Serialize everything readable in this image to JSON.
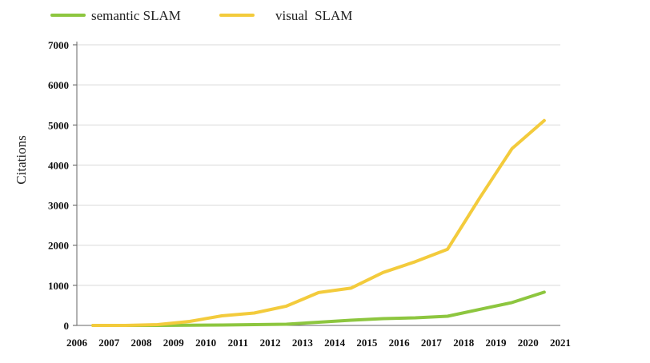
{
  "chart_data": {
    "type": "line",
    "xlabel": "",
    "ylabel": "Citations",
    "ylim": [
      0,
      7000
    ],
    "xlim": [
      2006,
      2021
    ],
    "grid": "horizontal",
    "legend_position": "top",
    "y_ticks": [
      "0",
      "1000",
      "2000",
      "3000",
      "4000",
      "5000",
      "6000",
      "7000"
    ],
    "x_ticks": [
      "2006",
      "2007",
      "2008",
      "2009",
      "2010",
      "2011",
      "2012",
      "2013",
      "2014",
      "2015",
      "2016",
      "2017",
      "2018",
      "2019",
      "2020",
      "2021"
    ],
    "series": [
      {
        "name": "semantic SLAM",
        "color": "#8dc63f",
        "x": [
          2006.5,
          2007.5,
          2008.5,
          2009.5,
          2010.5,
          2011.5,
          2012.5,
          2013.5,
          2014.5,
          2015.5,
          2016.5,
          2017.5,
          2018.5,
          2019.5,
          2020.5
        ],
        "values": [
          0,
          0,
          0,
          5,
          10,
          20,
          30,
          80,
          130,
          170,
          190,
          230,
          400,
          570,
          830
        ]
      },
      {
        "name": "visual  SLAM",
        "color": "#f3cb3c",
        "x": [
          2006.5,
          2007.5,
          2008.5,
          2009.5,
          2010.5,
          2011.5,
          2012.5,
          2013.5,
          2014.5,
          2015.5,
          2016.5,
          2017.5,
          2018.5,
          2019.5,
          2020.5
        ],
        "values": [
          0,
          0,
          20,
          100,
          240,
          310,
          480,
          820,
          930,
          1320,
          1590,
          1900,
          3180,
          4410,
          5110
        ]
      }
    ]
  }
}
